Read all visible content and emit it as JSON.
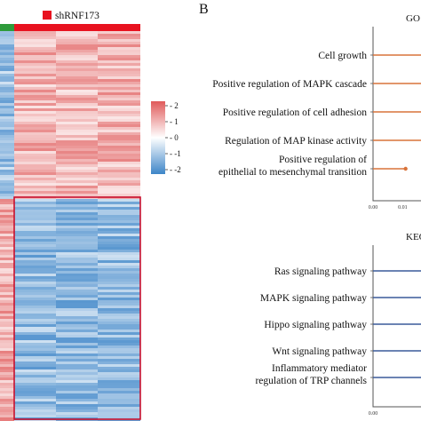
{
  "heatmap": {
    "group_label": "shRNF173",
    "group_color": "#e8121f",
    "control_color": "#2e9b3a",
    "high_color": "#e05a5a",
    "mid_color": "#ffffff",
    "low_color": "#3d85c8",
    "box_color": "#c8102e",
    "colorbar_ticks": [
      "2",
      "1",
      "0",
      "-1",
      "-2"
    ]
  },
  "panel_b_label": "B",
  "chart_data": [
    {
      "type": "heatmap",
      "group_label": "shRNF173",
      "colorbar": {
        "ticks": [
          2,
          1,
          0,
          -1,
          -2
        ],
        "range": [
          -2,
          2
        ]
      },
      "columns": 4,
      "column_groups": [
        "",
        "shRNF173",
        "shRNF173",
        "shRNF173"
      ],
      "pattern": {
        "upper_block": {
          "control_column": -1.0,
          "shRNF173_columns": 0.9
        },
        "lower_block": {
          "control_column": 1.0,
          "shRNF173_columns": -1.1
        }
      },
      "highlight_box": "lower block of shRNF173 columns"
    },
    {
      "type": "lollipop",
      "title": "GO",
      "categories": [
        "Cell growth",
        "Positive regulation of MAPK cascade",
        "Positive regulation of cell adhesion",
        "Regulation of MAP kinase activity",
        "Positive regulation of epithelial to mesenchymal transition"
      ],
      "category_lines": [
        [
          "Cell growth"
        ],
        [
          "Positive regulation of MAPK cascade"
        ],
        [
          "Positive regulation of cell adhesion"
        ],
        [
          "Regulation of MAP kinase activity"
        ],
        [
          "Positive regulation of",
          "epithelial to mesenchymal transition"
        ]
      ],
      "values": [
        0.03,
        0.03,
        0.03,
        0.03,
        0.011
      ],
      "xticks": [
        "0.00",
        "0.01"
      ],
      "xlim": [
        0,
        0.015
      ],
      "color": "#d9733a"
    },
    {
      "type": "lollipop",
      "title": "KEG",
      "categories": [
        "Ras signaling pathway",
        "MAPK signaling pathway",
        "Hippo signaling pathway",
        "Wnt signaling pathway",
        "Inflammatory mediator regulation of TRP channels"
      ],
      "category_lines": [
        [
          "Ras signaling pathway"
        ],
        [
          "MAPK signaling pathway"
        ],
        [
          "Hippo signaling pathway"
        ],
        [
          "Wnt signaling pathway"
        ],
        [
          "Inflammatory mediator",
          "regulation of TRP channels"
        ]
      ],
      "values": [
        0.03,
        0.03,
        0.03,
        0.03,
        0.03
      ],
      "xticks": [
        "0.00"
      ],
      "xlim": [
        0,
        0.015
      ],
      "color": "#3a5a9a"
    }
  ]
}
